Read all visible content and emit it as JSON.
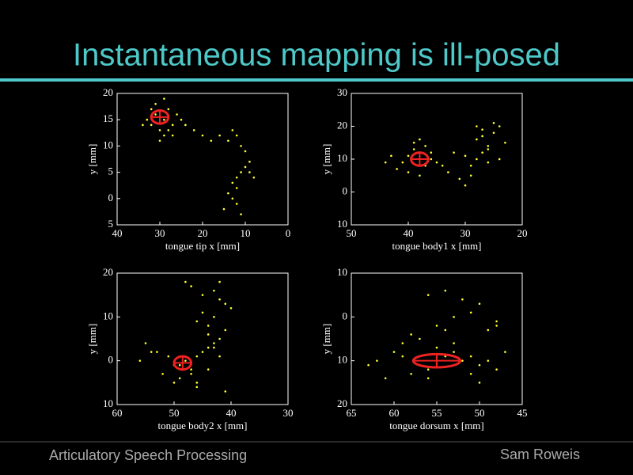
{
  "title": "Instantaneous mapping is ill-posed",
  "footer": {
    "left": "Articulatory Speech Processing",
    "right": "Sam Roweis"
  },
  "chart_data": [
    {
      "type": "scatter",
      "xlabel": "tongue tip x [mm]",
      "ylabel": "y [mm]",
      "color": "#ffff33",
      "xlim": [
        40,
        0
      ],
      "ylim": [
        -5,
        20
      ],
      "xticks": [
        40,
        30,
        20,
        10,
        0
      ],
      "yticks": [
        20,
        15,
        10,
        5,
        0,
        {
          "value": -5,
          "label": "5"
        }
      ],
      "x": [
        31,
        29,
        32,
        28,
        30,
        33,
        27,
        31,
        29,
        26,
        30,
        34,
        28,
        25,
        32,
        29,
        27,
        24,
        22,
        20,
        18,
        16,
        14,
        13,
        12,
        11,
        10,
        9,
        10,
        11,
        12,
        13,
        12,
        14,
        13,
        15,
        11,
        9,
        8,
        12
      ],
      "y": [
        16,
        15,
        14,
        17,
        13,
        15,
        14,
        18,
        12,
        16,
        11,
        14,
        13,
        15,
        17,
        19,
        12,
        14,
        13,
        12,
        11,
        12,
        11,
        13,
        12,
        10,
        9,
        7,
        6,
        5,
        4,
        3,
        2,
        1,
        0,
        -2,
        -3,
        5,
        4,
        -1
      ],
      "highlight": {
        "x": 30,
        "y": 15.5,
        "width": 4,
        "height": 2.5,
        "color": "#ee2222"
      }
    },
    {
      "type": "scatter",
      "xlabel": "tongue body1 x [mm]",
      "ylabel": "y [mm]",
      "color": "#ffff33",
      "xlim": [
        50,
        20
      ],
      "ylim": [
        -10,
        30
      ],
      "xticks": [
        50,
        40,
        30,
        20
      ],
      "yticks": [
        30,
        20,
        10,
        0,
        {
          "value": -10,
          "label": "10"
        }
      ],
      "x": [
        38,
        40,
        37,
        39,
        41,
        36,
        42,
        38,
        35,
        39,
        43,
        37,
        40,
        36,
        38,
        44,
        34,
        33,
        31,
        30,
        28,
        27,
        26,
        29,
        25,
        27,
        24,
        28,
        26,
        25,
        23,
        30,
        29,
        32,
        27,
        26,
        24,
        28
      ],
      "y": [
        10,
        11,
        8,
        13,
        9,
        12,
        7,
        5,
        9,
        15,
        11,
        14,
        6,
        10,
        16,
        9,
        8,
        6,
        4,
        2,
        10,
        12,
        14,
        8,
        18,
        17,
        20,
        16,
        13,
        21,
        15,
        11,
        5,
        12,
        19,
        9,
        10,
        20
      ],
      "highlight": {
        "x": 38,
        "y": 10,
        "width": 3,
        "height": 4,
        "color": "#ee2222"
      }
    },
    {
      "type": "scatter",
      "xlabel": "tongue body2 x [mm]",
      "ylabel": "y [mm]",
      "color": "#ffff33",
      "xlim": [
        60,
        30
      ],
      "ylim": [
        -10,
        20
      ],
      "xticks": [
        60,
        50,
        40,
        30
      ],
      "yticks": [
        20,
        10,
        0,
        {
          "value": -10,
          "label": "10"
        }
      ],
      "x": [
        48,
        50,
        46,
        47,
        52,
        45,
        49,
        44,
        43,
        46,
        42,
        41,
        44,
        43,
        40,
        42,
        45,
        47,
        48,
        55,
        53,
        51,
        50,
        46,
        44,
        43,
        42,
        41,
        45,
        46,
        44,
        47,
        49,
        56,
        54,
        43,
        42,
        41
      ],
      "y": [
        0,
        -1,
        1,
        -2,
        -3,
        2,
        -4,
        3,
        4,
        -5,
        5,
        7,
        8,
        10,
        12,
        14,
        15,
        17,
        18,
        4,
        2,
        1,
        -5,
        -6,
        6,
        16,
        18,
        13,
        11,
        9,
        -2,
        -3,
        -1,
        0,
        2,
        3,
        1,
        -7
      ],
      "highlight": {
        "x": 48.5,
        "y": -0.5,
        "width": 3,
        "height": 3,
        "color": "#ee2222"
      }
    },
    {
      "type": "scatter",
      "xlabel": "tongue dorsum x [mm]",
      "ylabel": "y [mm]",
      "color": "#ffff33",
      "xlim": [
        65,
        45
      ],
      "ylim": [
        -20,
        10
      ],
      "xticks": [
        65,
        60,
        55,
        50,
        45
      ],
      "yticks": [
        10,
        0,
        {
          "value": -10,
          "label": "10"
        },
        {
          "value": -20,
          "label": "20"
        }
      ],
      "x": [
        55,
        54,
        57,
        56,
        53,
        52,
        51,
        50,
        49,
        48,
        58,
        59,
        60,
        62,
        63,
        61,
        57,
        55,
        53,
        51,
        50,
        49,
        48,
        52,
        54,
        56,
        58,
        55,
        53,
        51,
        50,
        47,
        48,
        59,
        56,
        54
      ],
      "y": [
        -10,
        -9,
        -11,
        -12,
        -8,
        -10,
        -9,
        -11,
        -10,
        -12,
        -13,
        -9,
        -8,
        -10,
        -11,
        -14,
        -5,
        -2,
        0,
        1,
        3,
        -3,
        -1,
        4,
        6,
        5,
        -4,
        -7,
        -6,
        -13,
        -15,
        -8,
        -2,
        -6,
        -14,
        -3
      ],
      "highlight": {
        "x": 55,
        "y": -10,
        "width": 5.5,
        "height": 3,
        "color": "#ee2222"
      }
    }
  ]
}
